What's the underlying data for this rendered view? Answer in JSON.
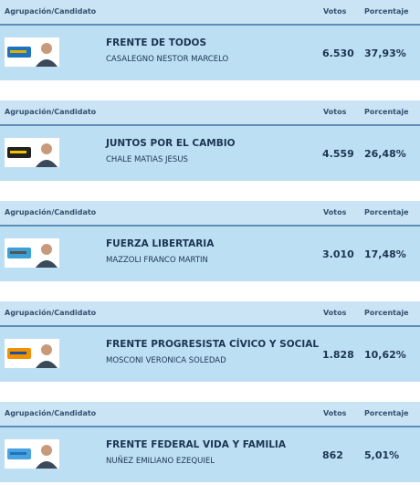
{
  "table": {
    "columns": [
      "Agrupación/Candidato",
      "Votos",
      "Porcentaje"
    ],
    "rows": [
      {
        "party": "FRENTE DE TODOS",
        "candidate": "CASALEGNO NESTOR MARCELO",
        "votes": "6.530",
        "percentage": "37,93%"
      },
      {
        "party": "JUNTOS POR EL CAMBIO",
        "candidate": "CHALE MATIAS JESUS",
        "votes": "4.559",
        "percentage": "26,48%"
      },
      {
        "party": "FUERZA LIBERTARIA",
        "candidate": "MAZZOLI FRANCO MARTIN",
        "votes": "3.010",
        "percentage": "17,48%"
      },
      {
        "party": "FRENTE PROGRESISTA CÍVICO Y SOCIAL",
        "candidate": "MOSCONI VERONICA SOLEDAD",
        "votes": "1.828",
        "percentage": "10,62%"
      },
      {
        "party": "FRENTE FEDERAL VIDA Y FAMILIA",
        "candidate": "NUÑEZ EMILIANO EZEQUIEL",
        "votes": "862",
        "percentage": "5,01%"
      }
    ]
  }
}
